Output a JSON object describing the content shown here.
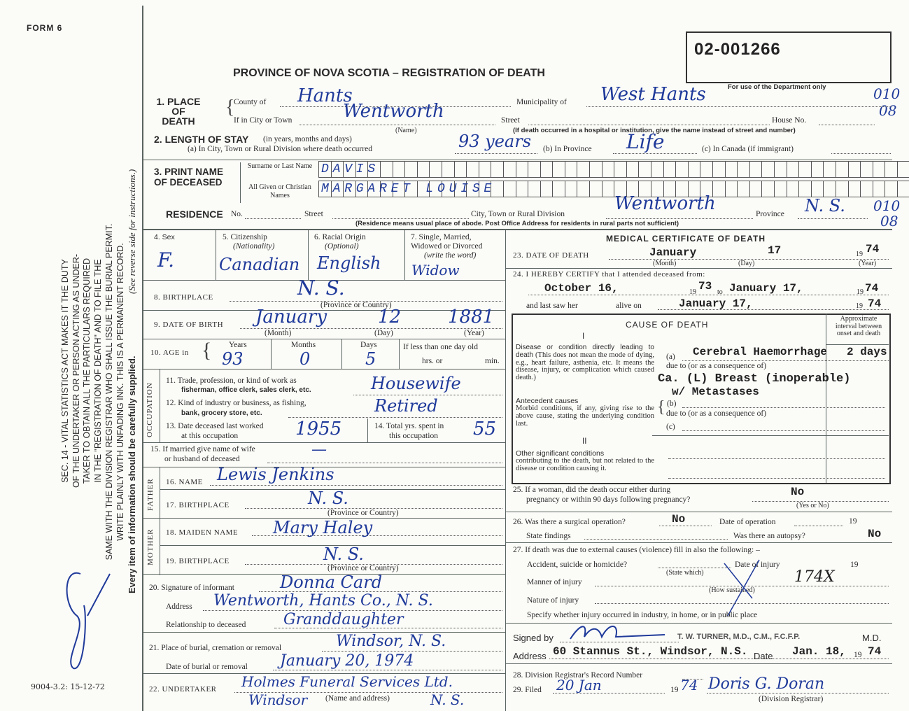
{
  "form_number": "FORM 6",
  "side_notice": {
    "lines": [
      "SEC. 14 - VITAL STATISTICS ACT MAKES IT THE DUTY",
      "OF THE UNDERTAKER OR PERSON ACTING AS UNDER-",
      "TAKER TO OBTAIN ALL THE PARTICULARS REQUIRED",
      "IN THE \"REGISTRATION OF DEATH\" AND TO FILE THE",
      "SAME WITH THE DIVISION REGISTRAR WHO SHALL ISSUE THE BURIAL PERMIT.",
      "WRITE PLAINLY WITH UNFADING INK. THIS IS A PERMANENT RECORD."
    ],
    "every_item": "Every item of information should be carefully supplied.",
    "see_reverse": "(See reverse side for instructions.)",
    "initials": "JS"
  },
  "print_code": "9004-3.2: 15-12-72",
  "title": "PROVINCE OF NOVA SCOTIA – REGISTRATION OF DEATH",
  "registration_number": "02-001266",
  "dept_use": {
    "label": "For use of the Department only",
    "place_codes": [
      "010",
      "08"
    ],
    "residence_codes": [
      "010",
      "08"
    ]
  },
  "place_of_death": {
    "heading": "1. PLACE OF DEATH",
    "county_label": "County of",
    "county": "Hants",
    "municipality_label": "Municipality of",
    "municipality": "West Hants",
    "city_label": "If in City or Town",
    "city": "Wentworth",
    "city_sub": "(Name)",
    "street_label": "Street",
    "house_label": "House No.",
    "hospital_note": "(If death occurred in a hospital or institution, give the name instead of street and number)"
  },
  "length_of_stay": {
    "heading": "2. LENGTH OF STAY",
    "heading_note": "(in years, months and days)",
    "a_label": "(a) In City, Town or Rural Division where death occurred",
    "a_value": "93 years",
    "b_label": "(b) In Province",
    "b_value": "Life",
    "c_label": "(c) In Canada (if immigrant)"
  },
  "name": {
    "heading": "3. PRINT NAME OF DECEASED",
    "surname_label": "Surname or Last Name",
    "surname": "DAVIS",
    "given_label": "All Given or Christian Names",
    "given": "MARGARET LOUISE"
  },
  "residence": {
    "heading": "RESIDENCE",
    "no_label": "No.",
    "street_label": "Street",
    "city_label": "City, Town or Rural Division",
    "city": "Wentworth",
    "province_label": "Province",
    "province": "N. S.",
    "note": "(Residence means usual place of abode. Post Office Address for residents in rural parts not sufficient)"
  },
  "personal": {
    "sex_label": "4. Sex",
    "sex": "F.",
    "citizenship_label": "5. Citizenship",
    "citizenship_sub": "(Nationality)",
    "citizenship": "Canadian",
    "racial_label": "6. Racial Origin",
    "racial_sub": "(Optional)",
    "racial": "English",
    "marital_label": "7. Single, Married, Widowed or Divorced",
    "marital_sub": "(write the word)",
    "marital": "Widow",
    "birthplace_label": "8. BIRTHPLACE",
    "birthplace": "N. S.",
    "birthplace_sub": "(Province or Country)",
    "dob_label": "9. DATE OF BIRTH",
    "dob_month": "January",
    "dob_day": "12",
    "dob_year": "1881",
    "month_sub": "(Month)",
    "day_sub": "(Day)",
    "year_sub": "(Year)",
    "age_label": "10. AGE in",
    "years_label": "Years",
    "years": "93",
    "months_label": "Months",
    "months": "0",
    "days_label": "Days",
    "days": "5",
    "less_label": "If less than one day old",
    "hrs_label": "hrs. or",
    "min_label": "min."
  },
  "occupation": {
    "side": "OCCUPATION",
    "trade_label": "11. Trade, profession, or kind of work as",
    "trade_label2": "fisherman, office clerk, sales clerk, etc.",
    "trade": "Housewife",
    "industry_label": "12. Kind of industry or business, as fishing,",
    "industry_label2": "bank, grocery store, etc.",
    "industry": "Retired",
    "last_worked_label": "13. Date deceased last worked",
    "last_worked_label2": "at this occupation",
    "last_worked": "1955",
    "total_label": "14. Total yrs. spent in",
    "total_label2": "this occupation",
    "total": "55"
  },
  "spouse": {
    "label": "15. If married give name of wife",
    "label2": "or husband of deceased",
    "value": "—"
  },
  "father": {
    "side": "FATHER",
    "name_label": "16. NAME",
    "name": "Lewis Jenkins",
    "birthplace_label": "17. BIRTHPLACE",
    "birthplace": "N. S.",
    "sub": "(Province or Country)"
  },
  "mother": {
    "side": "MOTHER",
    "name_label": "18. MAIDEN NAME",
    "name": "Mary Haley",
    "birthplace_label": "19. BIRTHPLACE",
    "birthplace": "N. S.",
    "sub": "(Province or Country)"
  },
  "informant": {
    "label": "20. Signature of informant",
    "name": "Donna Card",
    "address_label": "Address",
    "address": "Wentworth, Hants Co., N. S.",
    "relationship_label": "Relationship to deceased",
    "relationship": "Granddaughter"
  },
  "burial": {
    "place_label": "21. Place of burial, cremation or removal",
    "place": "Windsor, N. S.",
    "date_label": "Date of burial or removal",
    "date": "January 20, 1974"
  },
  "undertaker": {
    "label": "22. UNDERTAKER",
    "name": "Holmes Funeral Services Ltd.",
    "address": "Windsor",
    "province": "N. S.",
    "sub": "(Name and address)"
  },
  "medical": {
    "heading": "MEDICAL CERTIFICATE OF DEATH",
    "dod_label": "23. DATE OF DEATH",
    "dod_month": "January",
    "dod_day": "17",
    "dod_year_prefix": "19",
    "dod_year": "74",
    "certify_label": "24. I HEREBY CERTIFY that I attended deceased from:",
    "from_date": "October 16,",
    "from_year": "73",
    "to_label": "to",
    "to_date": "January 17,",
    "to_year": "74",
    "last_saw_label": "and last saw her",
    "alive_label": "alive on",
    "last_saw_date": "January 17,",
    "last_saw_year": "74"
  },
  "cause": {
    "heading": "CAUSE OF DEATH",
    "interval_heading": "Approximate interval between onset and death",
    "part1": "I",
    "part2": "II",
    "direct_title": "Disease or condition directly leading to death",
    "direct_note": "(This does not mean the mode of dying, e.g., heart failure, asthenia, etc. It means the disease, injury, or complication which caused death.)",
    "antecedent_title": "Antecedent causes",
    "antecedent_note": "Morbid conditions, if any, giving rise to the above cause, stating the underlying condition last.",
    "other_title": "Other significant conditions",
    "other_note": "contributing to the death, but not related to the disease or condition causing it.",
    "a_label": "(a)",
    "a": "Cerebral Haemorrhage",
    "a_interval": "2 days",
    "due_to": "due to (or as a consequence of)",
    "b_label": "(b)",
    "b_line1": "Ca. (L) Breast (inoperable)",
    "b_line2": "w/ Metastases",
    "c_label": "(c)"
  },
  "pregnancy": {
    "label": "25. If a woman, did the death occur either during",
    "label2": "pregnancy or within 90 days following pregnancy?",
    "value": "No",
    "sub": "(Yes or No)"
  },
  "surgery": {
    "label": "26. Was there a surgical operation?",
    "value": "No",
    "date_label": "Date of operation",
    "year_prefix": "19",
    "findings_label": "State findings",
    "autopsy_label": "Was there an autopsy?",
    "autopsy": "No"
  },
  "external": {
    "label": "27. If death was due to external causes (violence) fill in also the following: –",
    "accident_label": "Accident, suicide or homicide?",
    "state_which": "(State which)",
    "injury_date_label": "Date of injury",
    "year_prefix": "19",
    "manner_label": "Manner of injury",
    "how": "(How sustained)",
    "mark": "174X",
    "nature_label": "Nature of injury",
    "specify_label": "Specify whether injury occurred in industry, in home, or in public place"
  },
  "signature": {
    "signed_label": "Signed by",
    "physician": "T. W. TURNER, M.D., C.M., F.C.F.P.",
    "md": "M.D.",
    "address_label": "Address",
    "address": "60 Stannus St., Windsor, N.S.",
    "date_label": "Date",
    "date": "Jan. 18,",
    "year_prefix": "19",
    "year": "74"
  },
  "registrar": {
    "record_label": "28. Division Registrar's Record Number",
    "filed_label": "29. Filed",
    "filed_date": "20 Jan",
    "year_prefix": "19",
    "year": "74",
    "name": "Doris G. Doran",
    "sub": "(Division Registrar)"
  }
}
